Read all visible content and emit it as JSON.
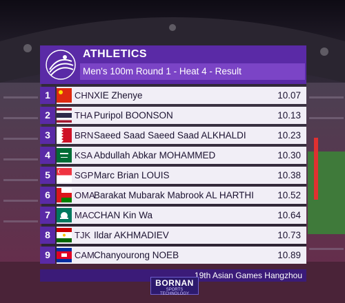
{
  "header": {
    "sport": "ATHLETICS",
    "subtitle": "Men's 100m Round 1 - Heat 4 - Result"
  },
  "results": [
    {
      "rank": "1",
      "code": "CHN",
      "name": "XIE Zhenye",
      "time": "10.07",
      "flag": "chn-flag"
    },
    {
      "rank": "2",
      "code": "THA",
      "name": "Puripol BOONSON",
      "time": "10.13",
      "flag": "tha-flag"
    },
    {
      "rank": "3",
      "code": "BRN",
      "name": "Saeed Saad Saeed Saad ALKHALDI",
      "time": "10.23",
      "flag": "brn-flag"
    },
    {
      "rank": "4",
      "code": "KSA",
      "name": "Abdullah Abkar MOHAMMED",
      "time": "10.30",
      "flag": "ksa-flag"
    },
    {
      "rank": "5",
      "code": "SGP",
      "name": "Marc Brian LOUIS",
      "time": "10.38",
      "flag": "sgp-flag"
    },
    {
      "rank": "6",
      "code": "OMA",
      "name": "Barakat Mubarak Mabrook AL HARTHI",
      "time": "10.52",
      "flag": "oma-flag"
    },
    {
      "rank": "7",
      "code": "MAC",
      "name": "CHAN Kin Wa",
      "time": "10.64",
      "flag": "mac-flag"
    },
    {
      "rank": "8",
      "code": "TJK",
      "name": "Ildar AKHMADIEV",
      "time": "10.73",
      "flag": "tjk-flag"
    },
    {
      "rank": "9",
      "code": "CAM",
      "name": "Chanyourong NOEB",
      "time": "10.89",
      "flag": "cam-flag"
    }
  ],
  "footer": {
    "event": "19th Asian Games Hangzhou"
  },
  "sponsor": {
    "name": "BORNAN",
    "tagline": "SPORTS TECHNOLOGY"
  },
  "colors": {
    "header": "#5a2aa6",
    "subtitle": "#7b44c6",
    "row_bg": "#f1eef6",
    "footer": "#3b1b78"
  }
}
